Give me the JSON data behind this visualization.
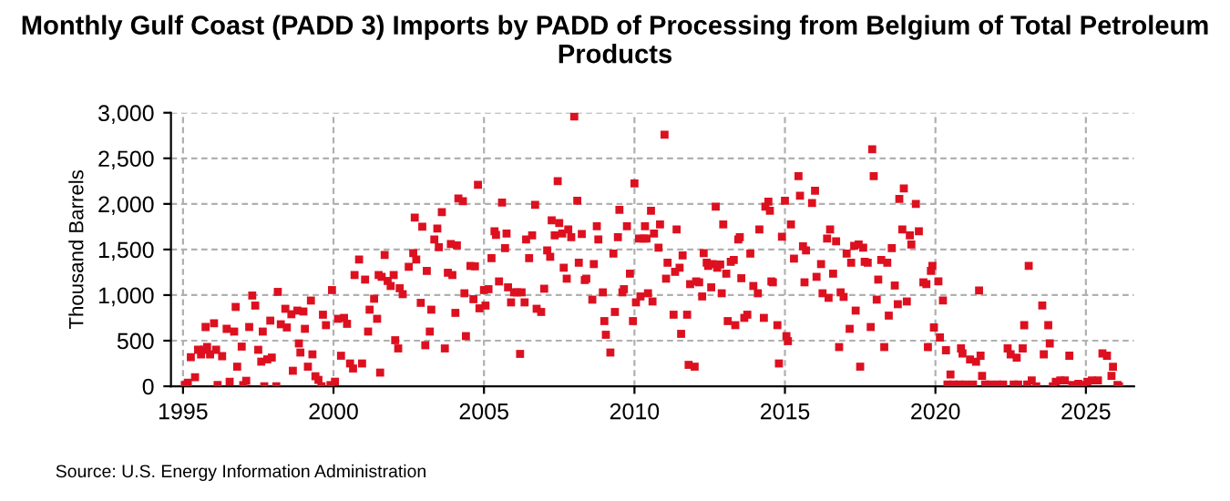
{
  "chart_data": {
    "type": "scatter",
    "title": "Monthly Gulf Coast (PADD 3) Imports by PADD of Processing from Belgium of Total Petroleum Products",
    "ylabel": "Thousand Barrels",
    "annotations": [
      "Source: U.S. Energy Information Administration"
    ],
    "marker": "square",
    "grid": true,
    "xlim": [
      1994.6,
      2026.6
    ],
    "xticks": [
      1995,
      2000,
      2005,
      2010,
      2015,
      2020,
      2025
    ],
    "ylim": [
      0,
      3000
    ],
    "yticks": [
      0,
      500,
      {
        "value": 1000,
        "label": "1,000"
      },
      {
        "value": 1500,
        "label": "1,500"
      },
      {
        "value": 2000,
        "label": "2,000"
      },
      {
        "value": 2500,
        "label": "2,500"
      },
      {
        "value": 3000,
        "label": "3,000"
      }
    ],
    "series": [
      {
        "color": "#dd1020",
        "x": [
          1995.06,
          1995.16,
          1995.26,
          1995.4,
          1995.5,
          1995.6,
          1995.7,
          1995.75,
          1995.8,
          1995.9,
          1996.03,
          1996.1,
          1996.15,
          1996.3,
          1996.45,
          1996.55,
          1996.7,
          1996.75,
          1996.8,
          1996.95,
          1997.0,
          1997.1,
          1997.2,
          1997.3,
          1997.4,
          1997.5,
          1997.6,
          1997.65,
          1997.7,
          1997.8,
          1997.9,
          1997.95,
          1998.1,
          1998.15,
          1998.25,
          1998.4,
          1998.45,
          1998.6,
          1998.65,
          1998.8,
          1998.85,
          1998.9,
          1999.0,
          1999.05,
          1999.15,
          1999.25,
          1999.3,
          1999.4,
          1999.5,
          1999.6,
          1999.65,
          1999.75,
          1999.9,
          1999.95,
          2000.05,
          2000.15,
          2000.25,
          2000.35,
          2000.45,
          2000.55,
          2000.65,
          2000.7,
          2000.85,
          2000.95,
          2001.05,
          2001.15,
          2001.2,
          2001.35,
          2001.45,
          2001.5,
          2001.55,
          2001.6,
          2001.7,
          2001.8,
          2001.9,
          2002.0,
          2002.05,
          2002.15,
          2002.2,
          2002.3,
          2002.5,
          2002.65,
          2002.7,
          2002.75,
          2002.9,
          2002.95,
          2003.05,
          2003.1,
          2003.2,
          2003.25,
          2003.35,
          2003.45,
          2003.5,
          2003.6,
          2003.7,
          2003.8,
          2003.9,
          2003.95,
          2004.05,
          2004.1,
          2004.15,
          2004.3,
          2004.35,
          2004.4,
          2004.55,
          2004.65,
          2004.7,
          2004.8,
          2004.85,
          2005.0,
          2005.05,
          2005.15,
          2005.25,
          2005.35,
          2005.4,
          2005.5,
          2005.6,
          2005.7,
          2005.75,
          2005.8,
          2005.9,
          2006.0,
          2006.1,
          2006.2,
          2006.25,
          2006.35,
          2006.4,
          2006.5,
          2006.6,
          2006.7,
          2006.75,
          2006.9,
          2007.0,
          2007.1,
          2007.2,
          2007.25,
          2007.35,
          2007.45,
          2007.5,
          2007.6,
          2007.65,
          2007.75,
          2007.8,
          2007.9,
          2008.0,
          2008.1,
          2008.15,
          2008.25,
          2008.35,
          2008.4,
          2008.6,
          2008.65,
          2008.75,
          2008.8,
          2008.95,
          2009.0,
          2009.05,
          2009.2,
          2009.3,
          2009.35,
          2009.45,
          2009.5,
          2009.6,
          2009.65,
          2009.75,
          2009.85,
          2009.95,
          2010.0,
          2010.05,
          2010.15,
          2010.2,
          2010.3,
          2010.35,
          2010.4,
          2010.45,
          2010.55,
          2010.6,
          2010.65,
          2010.8,
          2010.85,
          2011.0,
          2011.05,
          2011.1,
          2011.3,
          2011.35,
          2011.4,
          2011.5,
          2011.55,
          2011.6,
          2011.75,
          2011.8,
          2011.85,
          2012.0,
          2012.05,
          2012.15,
          2012.25,
          2012.3,
          2012.4,
          2012.45,
          2012.55,
          2012.6,
          2012.7,
          2012.75,
          2012.85,
          2012.9,
          2012.95,
          2013.05,
          2013.1,
          2013.2,
          2013.3,
          2013.35,
          2013.45,
          2013.5,
          2013.55,
          2013.65,
          2013.75,
          2013.85,
          2013.95,
          2014.1,
          2014.15,
          2014.3,
          2014.35,
          2014.45,
          2014.5,
          2014.55,
          2014.6,
          2014.75,
          2014.8,
          2014.9,
          2015.0,
          2015.05,
          2015.1,
          2015.2,
          2015.3,
          2015.45,
          2015.5,
          2015.6,
          2015.65,
          2015.7,
          2015.9,
          2016.0,
          2016.05,
          2016.2,
          2016.25,
          2016.4,
          2016.45,
          2016.5,
          2016.6,
          2016.7,
          2016.8,
          2016.85,
          2016.95,
          2017.05,
          2017.15,
          2017.2,
          2017.3,
          2017.35,
          2017.45,
          2017.5,
          2017.6,
          2017.65,
          2017.75,
          2017.85,
          2017.9,
          2017.95,
          2018.05,
          2018.1,
          2018.2,
          2018.3,
          2018.4,
          2018.45,
          2018.55,
          2018.65,
          2018.75,
          2018.8,
          2018.9,
          2018.95,
          2019.05,
          2019.15,
          2019.2,
          2019.35,
          2019.45,
          2019.6,
          2019.7,
          2019.75,
          2019.85,
          2019.9,
          2019.95,
          2020.1,
          2020.15,
          2020.25,
          2020.35,
          2020.4,
          2020.5,
          2020.6,
          2020.8,
          2020.85,
          2020.9,
          2021.0,
          2021.15,
          2021.25,
          2021.35,
          2021.45,
          2021.5,
          2021.55,
          2021.65,
          2021.8,
          2022.05,
          2022.25,
          2022.4,
          2022.5,
          2022.6,
          2022.7,
          2022.75,
          2022.9,
          2022.95,
          2023.05,
          2023.1,
          2023.2,
          2023.35,
          2023.55,
          2023.6,
          2023.75,
          2023.8,
          2023.9,
          2024.0,
          2024.15,
          2024.3,
          2024.45,
          2024.55,
          2024.75,
          2024.9,
          2025.05,
          2025.2,
          2025.4,
          2025.55,
          2025.7,
          2025.85,
          2025.9,
          2026.05,
          2026.1
        ],
        "values": [
          13,
          40,
          320,
          100,
          400,
          350,
          400,
          650,
          430,
          350,
          690,
          400,
          13,
          330,
          630,
          50,
          600,
          870,
          215,
          435,
          13,
          60,
          650,
          995,
          885,
          400,
          270,
          600,
          0,
          295,
          720,
          315,
          0,
          1035,
          680,
          850,
          645,
          790,
          170,
          830,
          470,
          370,
          820,
          630,
          215,
          940,
          350,
          110,
          70,
          0,
          785,
          670,
          13,
          1055,
          50,
          740,
          335,
          750,
          685,
          250,
          195,
          1220,
          1390,
          250,
          1170,
          600,
          840,
          960,
          740,
          1220,
          150,
          1200,
          1440,
          1155,
          1100,
          1220,
          505,
          415,
          1075,
          1010,
          1310,
          1460,
          1850,
          1390,
          915,
          1750,
          450,
          1265,
          600,
          840,
          1610,
          1730,
          1525,
          1910,
          415,
          1245,
          1560,
          1220,
          805,
          1545,
          2060,
          2030,
          1020,
          550,
          1320,
          955,
          1315,
          2210,
          855,
          1055,
          885,
          1065,
          1405,
          1700,
          1660,
          1150,
          2015,
          1515,
          1675,
          1085,
          920,
          1030,
          1030,
          355,
          1030,
          920,
          1610,
          1405,
          1655,
          1990,
          850,
          815,
          1070,
          1490,
          1420,
          1820,
          1655,
          2250,
          1790,
          1675,
          1300,
          1180,
          1720,
          1635,
          2960,
          2035,
          1355,
          1670,
          1165,
          1180,
          950,
          1340,
          1755,
          1610,
          1030,
          715,
          565,
          370,
          1455,
          815,
          1635,
          1935,
          1030,
          1065,
          1755,
          1235,
          715,
          2225,
          920,
          1620,
          985,
          1620,
          1755,
          1620,
          1020,
          1925,
          930,
          1675,
          1520,
          1775,
          2760,
          1180,
          1355,
          785,
          1255,
          1720,
          1300,
          575,
          1435,
          785,
          235,
          1120,
          215,
          1150,
          1140,
          985,
          1460,
          1355,
          1320,
          1085,
          1340,
          1970,
          1300,
          1335,
          1020,
          1775,
          1235,
          715,
          1365,
          1385,
          670,
          1610,
          1635,
          1185,
          750,
          785,
          1455,
          1100,
          1020,
          1720,
          750,
          1970,
          2025,
          1925,
          1150,
          1140,
          670,
          250,
          1640,
          2035,
          550,
          495,
          1775,
          1400,
          2305,
          2090,
          1535,
          1140,
          1490,
          2010,
          2145,
          1200,
          1340,
          1020,
          1620,
          970,
          1720,
          1235,
          1590,
          430,
          1030,
          980,
          1455,
          630,
          1355,
          1540,
          830,
          1555,
          215,
          1520,
          1365,
          1355,
          650,
          2600,
          2305,
          950,
          1170,
          1385,
          430,
          1355,
          775,
          1515,
          1105,
          900,
          2055,
          1720,
          2170,
          930,
          1655,
          1555,
          2000,
          1700,
          1140,
          1120,
          430,
          1265,
          1320,
          645,
          1150,
          535,
          940,
          395,
          20,
          130,
          20,
          20,
          415,
          360,
          20,
          295,
          20,
          270,
          1050,
          335,
          115,
          20,
          20,
          20,
          20,
          415,
          350,
          20,
          315,
          20,
          415,
          670,
          20,
          1320,
          65,
          0,
          885,
          350,
          670,
          470,
          0,
          50,
          65,
          65,
          335,
          13,
          27,
          13,
          50,
          65,
          65,
          360,
          335,
          115,
          215,
          13,
          0
        ]
      }
    ]
  }
}
